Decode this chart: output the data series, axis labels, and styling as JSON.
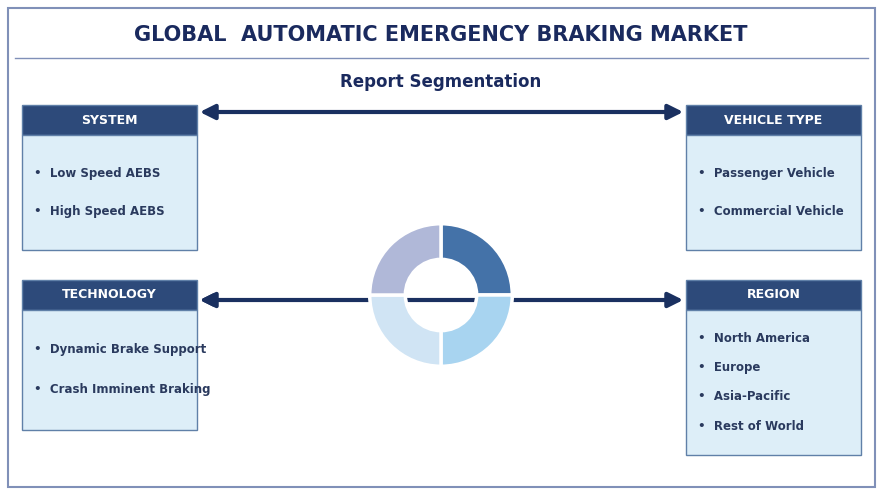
{
  "title": "GLOBAL  AUTOMATIC EMERGENCY BRAKING MARKET",
  "subtitle": "Report Segmentation",
  "title_color": "#1a2a5e",
  "subtitle_color": "#1a2a5e",
  "background_color": "#ffffff",
  "border_color": "#a0a8c0",
  "header_bg": "#2d4a7a",
  "header_text_color": "#ffffff",
  "box_bg": "#ddeef8",
  "box_text_color": "#2a3a5e",
  "arrow_color": "#1a3060",
  "left_boxes": [
    {
      "header": "SYSTEM",
      "items": [
        "Low Speed AEBS",
        "High Speed AEBS"
      ]
    },
    {
      "header": "TECHNOLOGY",
      "items": [
        "Dynamic Brake Support",
        "Crash Imminent Braking"
      ]
    }
  ],
  "right_boxes": [
    {
      "header": "VEHICLE TYPE",
      "items": [
        "Passenger Vehicle",
        "Commercial Vehicle"
      ]
    },
    {
      "header": "REGION",
      "items": [
        "North America",
        "Europe",
        "Asia-Pacific",
        "Rest of World"
      ]
    }
  ],
  "donut_colors": [
    "#4472a8",
    "#a8d4f0",
    "#b0b8d8",
    "#d0e4f4"
  ],
  "donut_sizes": [
    0.25,
    0.25,
    0.25,
    0.25
  ],
  "donut_startangle": 90
}
